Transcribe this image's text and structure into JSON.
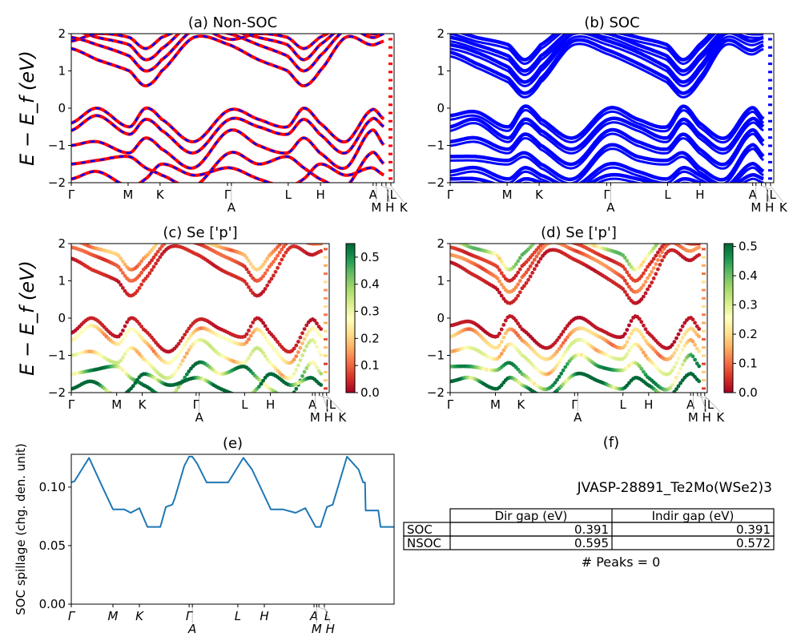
{
  "chart_data": [
    {
      "panel": "a",
      "type": "line",
      "title": "(a) Non-SOC",
      "ylabel": "E − E_f (eV)",
      "ylim": [
        -2,
        2
      ],
      "yticks": [
        -2,
        -1,
        0,
        1,
        2
      ],
      "xticks": [
        {
          "label": "Γ",
          "k": 0
        },
        {
          "label": "M",
          "k": 0.176
        },
        {
          "label": "K",
          "k": 0.275
        },
        {
          "label": "Γ",
          "k": 0.484
        },
        {
          "label": "A",
          "k": 0.496
        },
        {
          "label": "L",
          "k": 0.672
        },
        {
          "label": "H",
          "k": 0.772
        },
        {
          "label": "A",
          "k": 0.935
        },
        {
          "label": "M",
          "k": 0.945
        },
        {
          "label": "|L",
          "k": 0.962
        },
        {
          "label": "H",
          "k": 0.975
        },
        {
          "label": "K",
          "k": 0.99
        }
      ],
      "series_colors": [
        "#ff0000",
        "#0000ff"
      ],
      "k": [
        0,
        0.08,
        0.18,
        0.23,
        0.28,
        0.38,
        0.49,
        0.58,
        0.67,
        0.72,
        0.77,
        0.85,
        0.93,
        0.97
      ],
      "bands": [
        [
          1.6,
          1.3,
          1.0,
          0.6,
          1.0,
          1.9,
          1.7,
          1.3,
          1.0,
          0.6,
          1.0,
          1.9,
          1.7,
          1.8
        ],
        [
          1.9,
          1.7,
          1.4,
          1.0,
          1.3,
          2.1,
          2.0,
          1.7,
          1.4,
          1.0,
          1.4,
          2.1,
          2.0,
          2.0
        ],
        [
          2.1,
          1.9,
          1.7,
          1.3,
          1.6,
          2.3,
          2.1,
          1.9,
          1.7,
          1.3,
          1.7,
          2.2,
          2.1,
          2.1
        ],
        [
          1.8,
          2.0,
          1.9,
          1.6,
          1.9,
          2.2,
          1.85,
          2.0,
          1.9,
          1.6,
          1.9,
          2.2,
          1.9,
          2.0
        ],
        [
          -0.4,
          0.0,
          -0.5,
          0.0,
          -0.3,
          -0.9,
          -0.05,
          -0.3,
          -0.5,
          0.0,
          -0.4,
          -0.9,
          -0.05,
          -0.3
        ],
        [
          -0.6,
          -0.2,
          -0.7,
          -0.3,
          -0.6,
          -1.2,
          -0.3,
          -0.5,
          -0.7,
          -0.3,
          -0.7,
          -1.2,
          -0.3,
          -0.5
        ],
        [
          -1.0,
          -0.9,
          -1.2,
          -0.8,
          -1.1,
          -1.6,
          -0.6,
          -1.0,
          -1.2,
          -0.8,
          -1.2,
          -1.6,
          -0.6,
          -1.0
        ],
        [
          -1.5,
          -1.4,
          -1.3,
          -1.6,
          -1.8,
          -2.1,
          -1.2,
          -1.5,
          -1.3,
          -1.6,
          -1.9,
          -2.1,
          -1.2,
          -1.5
        ],
        [
          -1.9,
          -1.7,
          -2.1,
          -1.9,
          -1.5,
          -1.8,
          -1.6,
          -1.9,
          -2.1,
          -1.9,
          -1.5,
          -1.8,
          -1.6,
          -1.8
        ]
      ]
    },
    {
      "panel": "b",
      "type": "line",
      "title": "(b) SOC",
      "ylim": [
        -2,
        2
      ],
      "yticks": [
        -2,
        -1,
        0,
        1,
        2
      ],
      "xticks": [
        {
          "label": "Γ",
          "k": 0
        },
        {
          "label": "M",
          "k": 0.176
        },
        {
          "label": "K",
          "k": 0.275
        },
        {
          "label": "Γ",
          "k": 0.484
        },
        {
          "label": "A",
          "k": 0.496
        },
        {
          "label": "L",
          "k": 0.672
        },
        {
          "label": "H",
          "k": 0.772
        },
        {
          "label": "A",
          "k": 0.935
        },
        {
          "label": "M",
          "k": 0.945
        },
        {
          "label": "|L",
          "k": 0.962
        },
        {
          "label": "H",
          "k": 0.975
        },
        {
          "label": "K",
          "k": 0.99
        }
      ],
      "series_colors": [
        "#0000ff"
      ],
      "k": [
        0,
        0.08,
        0.18,
        0.23,
        0.28,
        0.38,
        0.49,
        0.58,
        0.67,
        0.72,
        0.77,
        0.85,
        0.93,
        0.97
      ],
      "bands": [
        [
          1.5,
          1.2,
          0.8,
          0.4,
          0.8,
          1.8,
          1.55,
          1.2,
          0.8,
          0.4,
          0.8,
          1.8,
          1.55,
          1.7
        ],
        [
          1.7,
          1.5,
          1.1,
          0.7,
          1.1,
          2.0,
          1.8,
          1.5,
          1.1,
          0.7,
          1.1,
          2.0,
          1.8,
          1.9
        ],
        [
          1.9,
          1.7,
          1.4,
          1.0,
          1.4,
          2.1,
          2.0,
          1.7,
          1.4,
          1.0,
          1.4,
          2.1,
          2.0,
          2.0
        ],
        [
          2.1,
          1.9,
          1.7,
          1.3,
          1.7,
          2.3,
          2.1,
          1.9,
          1.7,
          1.3,
          1.7,
          2.3,
          2.1,
          2.1
        ],
        [
          -0.2,
          -0.1,
          -0.5,
          0.05,
          -0.3,
          -0.8,
          0.0,
          -0.3,
          -0.5,
          0.05,
          -0.4,
          -0.8,
          0.0,
          -0.3
        ],
        [
          -0.5,
          -0.3,
          -0.8,
          -0.3,
          -0.6,
          -1.1,
          -0.3,
          -0.5,
          -0.8,
          -0.3,
          -0.7,
          -1.1,
          -0.3,
          -0.5
        ],
        [
          -0.9,
          -0.8,
          -1.1,
          -0.7,
          -1.0,
          -1.5,
          -0.6,
          -0.9,
          -1.1,
          -0.7,
          -1.1,
          -1.5,
          -0.6,
          -0.9
        ],
        [
          -1.3,
          -1.3,
          -1.4,
          -1.2,
          -1.5,
          -1.9,
          -1.0,
          -1.3,
          -1.4,
          -1.2,
          -1.6,
          -1.9,
          -1.0,
          -1.3
        ],
        [
          -1.7,
          -1.6,
          -1.9,
          -1.6,
          -1.8,
          -2.1,
          -1.5,
          -1.7,
          -1.9,
          -1.6,
          -1.8,
          -2.1,
          -1.5,
          -1.7
        ],
        [
          -1.9,
          -1.9,
          -2.1,
          -1.9,
          -2.0,
          -2.2,
          -1.8,
          -1.9,
          -2.1,
          -1.9,
          -2.0,
          -2.2,
          -1.8,
          -1.9
        ]
      ]
    },
    {
      "panel": "c",
      "type": "scatter",
      "title": "(c)  Se ['p']",
      "ylabel": "E − E_f (eV)",
      "ylim": [
        -2,
        2
      ],
      "yticks": [
        -2,
        -1,
        0,
        1,
        2
      ],
      "xticks": [
        {
          "label": "Γ",
          "k": 0
        },
        {
          "label": "M",
          "k": 0.176
        },
        {
          "label": "K",
          "k": 0.275
        },
        {
          "label": "Γ",
          "k": 0.484
        },
        {
          "label": "A",
          "k": 0.496
        },
        {
          "label": "L",
          "k": 0.672
        },
        {
          "label": "H",
          "k": 0.772
        },
        {
          "label": "A",
          "k": 0.935
        },
        {
          "label": "M",
          "k": 0.945
        },
        {
          "label": "|L",
          "k": 0.962
        },
        {
          "label": "H",
          "k": 0.975
        },
        {
          "label": "K",
          "k": 0.99
        }
      ],
      "colorbar": {
        "colormap": "RdYlGn",
        "range": [
          0,
          0.55
        ],
        "ticks": [
          "0.0",
          "0.1",
          "0.2",
          "0.3",
          "0.4",
          "0.5"
        ]
      },
      "k": [
        0,
        0.08,
        0.18,
        0.23,
        0.28,
        0.38,
        0.49,
        0.58,
        0.67,
        0.72,
        0.77,
        0.85,
        0.93,
        0.97
      ],
      "bands": [
        [
          1.6,
          1.3,
          1.0,
          0.6,
          1.0,
          1.9,
          1.7,
          1.3,
          1.0,
          0.6,
          1.0,
          1.9,
          1.7,
          1.8
        ],
        [
          1.9,
          1.7,
          1.4,
          1.0,
          1.3,
          2.1,
          2.0,
          1.7,
          1.4,
          1.0,
          1.4,
          2.1,
          2.0,
          2.0
        ],
        [
          2.1,
          1.9,
          1.7,
          1.3,
          1.6,
          2.3,
          2.1,
          1.9,
          1.7,
          1.3,
          1.7,
          2.2,
          2.1,
          2.1
        ],
        [
          -0.4,
          0.0,
          -0.5,
          0.0,
          -0.3,
          -0.9,
          -0.05,
          -0.3,
          -0.5,
          0.0,
          -0.4,
          -0.9,
          -0.05,
          -0.3
        ],
        [
          -0.6,
          -0.2,
          -0.7,
          -0.3,
          -0.6,
          -1.2,
          -0.3,
          -0.5,
          -0.7,
          -0.3,
          -0.7,
          -1.2,
          -0.3,
          -0.5
        ],
        [
          -1.0,
          -0.9,
          -1.2,
          -0.8,
          -1.1,
          -1.6,
          -0.6,
          -1.0,
          -1.2,
          -0.8,
          -1.2,
          -1.6,
          -0.6,
          -1.0
        ],
        [
          -1.5,
          -1.4,
          -1.3,
          -1.6,
          -1.8,
          -2.1,
          -1.2,
          -1.5,
          -1.3,
          -1.6,
          -1.9,
          -2.1,
          -1.2,
          -1.5
        ],
        [
          -1.9,
          -1.7,
          -2.1,
          -1.9,
          -1.5,
          -1.8,
          -1.6,
          -1.9,
          -2.1,
          -1.9,
          -1.5,
          -1.8,
          -1.6,
          -1.8
        ]
      ],
      "weights": [
        0.04,
        0.08,
        0.15,
        0.03,
        0.2,
        0.25,
        0.4,
        0.5
      ]
    },
    {
      "panel": "d",
      "type": "scatter",
      "title": "(d) Se ['p']",
      "ylim": [
        -2,
        2
      ],
      "yticks": [
        -2,
        -1,
        0,
        1,
        2
      ],
      "xticks": [
        {
          "label": "Γ",
          "k": 0
        },
        {
          "label": "M",
          "k": 0.176
        },
        {
          "label": "K",
          "k": 0.275
        },
        {
          "label": "Γ",
          "k": 0.484
        },
        {
          "label": "A",
          "k": 0.496
        },
        {
          "label": "L",
          "k": 0.672
        },
        {
          "label": "H",
          "k": 0.772
        },
        {
          "label": "A",
          "k": 0.935
        },
        {
          "label": "M",
          "k": 0.945
        },
        {
          "label": "|L",
          "k": 0.962
        },
        {
          "label": "H",
          "k": 0.975
        },
        {
          "label": "K",
          "k": 0.99
        }
      ],
      "colorbar": {
        "colormap": "RdYlGn",
        "range": [
          0,
          0.51
        ],
        "ticks": [
          "0.0",
          "0.1",
          "0.2",
          "0.3",
          "0.4",
          "0.5"
        ]
      },
      "k": [
        0,
        0.08,
        0.18,
        0.23,
        0.28,
        0.38,
        0.49,
        0.58,
        0.67,
        0.72,
        0.77,
        0.85,
        0.93,
        0.97
      ],
      "bands": [
        [
          1.5,
          1.2,
          0.8,
          0.4,
          0.8,
          1.8,
          1.55,
          1.2,
          0.8,
          0.4,
          0.8,
          1.8,
          1.55,
          1.7
        ],
        [
          1.7,
          1.5,
          1.1,
          0.7,
          1.1,
          2.0,
          1.8,
          1.5,
          1.1,
          0.7,
          1.1,
          2.0,
          1.8,
          1.9
        ],
        [
          1.9,
          1.7,
          1.4,
          1.0,
          1.4,
          2.1,
          2.0,
          1.7,
          1.4,
          1.0,
          1.4,
          2.1,
          2.0,
          2.0
        ],
        [
          2.1,
          1.9,
          1.7,
          1.3,
          1.7,
          2.3,
          2.1,
          1.9,
          1.7,
          1.3,
          1.7,
          2.3,
          2.1,
          2.1
        ],
        [
          -0.2,
          -0.1,
          -0.5,
          0.05,
          -0.3,
          -0.8,
          0.0,
          -0.3,
          -0.5,
          0.05,
          -0.4,
          -0.8,
          0.0,
          -0.3
        ],
        [
          -0.5,
          -0.3,
          -0.8,
          -0.3,
          -0.6,
          -1.1,
          -0.3,
          -0.5,
          -0.8,
          -0.3,
          -0.7,
          -1.1,
          -0.3,
          -0.5
        ],
        [
          -0.9,
          -0.8,
          -1.1,
          -0.7,
          -1.0,
          -1.5,
          -0.6,
          -0.9,
          -1.1,
          -0.7,
          -1.1,
          -1.5,
          -0.6,
          -0.9
        ],
        [
          -1.3,
          -1.3,
          -1.4,
          -1.2,
          -1.5,
          -1.9,
          -1.0,
          -1.3,
          -1.4,
          -1.2,
          -1.6,
          -1.9,
          -1.0,
          -1.3
        ],
        [
          -1.7,
          -1.6,
          -1.9,
          -1.6,
          -1.8,
          -2.1,
          -1.5,
          -1.7,
          -1.9,
          -1.6,
          -1.8,
          -2.1,
          -1.5,
          -1.7
        ]
      ],
      "weights": [
        0.03,
        0.1,
        0.05,
        0.3,
        0.02,
        0.15,
        0.22,
        0.35,
        0.45
      ]
    },
    {
      "panel": "e",
      "type": "line",
      "title": "(e)",
      "ylabel": "SOC spillage (chg. den. unit)",
      "ylim": [
        0,
        0.128
      ],
      "yticks": [
        "0.00",
        "0.05",
        "0.10"
      ],
      "xticks": [
        {
          "label": "Γ",
          "k": 0
        },
        {
          "label": "M",
          "k": 0.129
        },
        {
          "label": "K",
          "k": 0.211
        },
        {
          "label": "Γ",
          "k": 0.365
        },
        {
          "label": "A",
          "k": 0.375
        },
        {
          "label": "L",
          "k": 0.516
        },
        {
          "label": "H",
          "k": 0.598
        },
        {
          "label": "A",
          "k": 0.752
        },
        {
          "label": "M",
          "k": 0.76
        },
        {
          "label": "L",
          "k": 0.767
        },
        {
          "label": "H",
          "k": 0.784
        }
      ],
      "color": "#1f77b4",
      "x": [
        0,
        0.01,
        0.055,
        0.1,
        0.129,
        0.164,
        0.184,
        0.211,
        0.236,
        0.246,
        0.276,
        0.293,
        0.313,
        0.32,
        0.35,
        0.365,
        0.375,
        0.39,
        0.419,
        0.486,
        0.533,
        0.56,
        0.618,
        0.655,
        0.695,
        0.725,
        0.757,
        0.772,
        0.792,
        0.81,
        0.854,
        0.89,
        0.904,
        0.91,
        0.912,
        0.951,
        0.958,
        1
      ],
      "y": [
        0.104,
        0.105,
        0.125,
        0.098,
        0.081,
        0.081,
        0.078,
        0.082,
        0.066,
        0.066,
        0.066,
        0.083,
        0.085,
        0.09,
        0.118,
        0.126,
        0.126,
        0.12,
        0.104,
        0.104,
        0.125,
        0.115,
        0.081,
        0.081,
        0.078,
        0.082,
        0.066,
        0.066,
        0.083,
        0.085,
        0.126,
        0.115,
        0.104,
        0.104,
        0.08,
        0.08,
        0.066,
        0.066
      ]
    }
  ],
  "panel_f": {
    "title": "(f)",
    "material": "JVASP-28891_Te2Mo(WSe2)3",
    "table": {
      "columns": [
        "Dir gap (eV)",
        "Indir gap (eV)"
      ],
      "rows": [
        {
          "label": "SOC",
          "dir": "0.391",
          "indir": "0.391"
        },
        {
          "label": "NSOC",
          "dir": "0.595",
          "indir": "0.572"
        }
      ]
    },
    "peaks": "# Peaks = 0"
  }
}
